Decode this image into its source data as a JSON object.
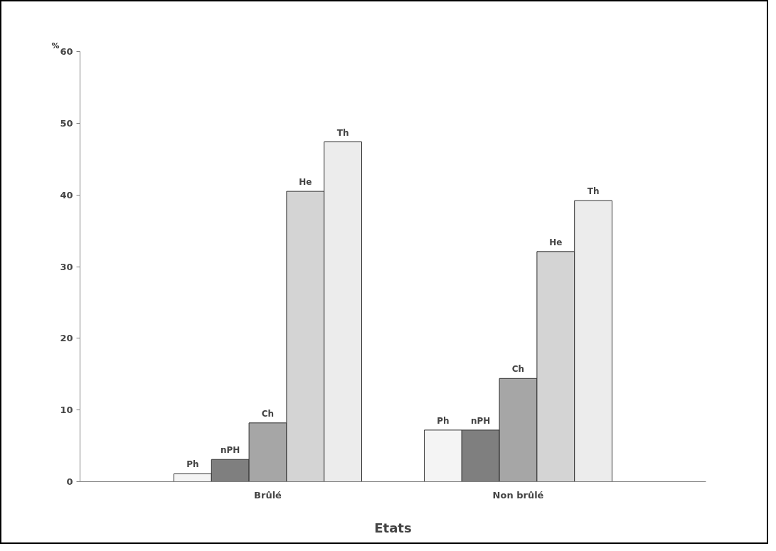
{
  "chart_data": {
    "type": "bar",
    "xlabel": "Etats",
    "ylabel": "%",
    "categories": [
      "Brûlé",
      "Non brûlé"
    ],
    "series": [
      {
        "name": "Ph",
        "color": "#f4f4f4",
        "values": [
          1.1,
          7.2
        ]
      },
      {
        "name": "nPH",
        "color": "#7f7f7f",
        "values": [
          3.1,
          7.2
        ]
      },
      {
        "name": "Ch",
        "color": "#a6a6a6",
        "values": [
          8.2,
          14.4
        ]
      },
      {
        "name": "He",
        "color": "#d4d4d4",
        "values": [
          40.5,
          32.1
        ]
      },
      {
        "name": "Th",
        "color": "#ececec",
        "values": [
          47.4,
          39.2
        ]
      }
    ],
    "ylim": [
      0,
      60
    ],
    "yticks": [
      0,
      10,
      20,
      30,
      40,
      50,
      60
    ],
    "grid": false
  }
}
